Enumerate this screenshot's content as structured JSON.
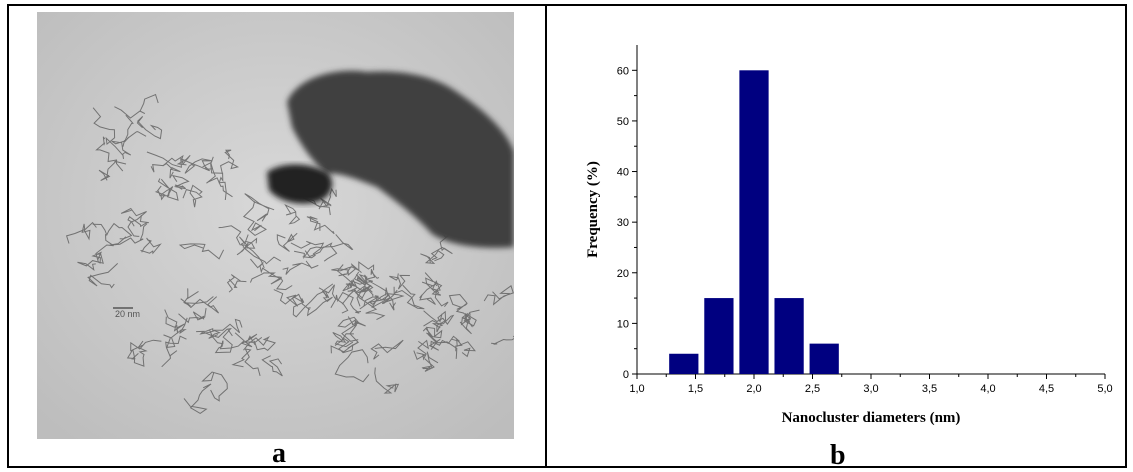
{
  "panels": {
    "left_label": "a",
    "right_label": "b"
  },
  "micrograph": {
    "scale_label": "20 nm"
  },
  "chart_data": {
    "type": "bar",
    "x": [
      1.4,
      1.7,
      2.0,
      2.3,
      2.6
    ],
    "values": [
      4,
      15,
      60,
      15,
      6
    ],
    "bar_color": "#000080",
    "xlabel": "Nanocluster diameters (nm)",
    "ylabel": "Frequency (%)",
    "xlim": [
      1.0,
      5.0
    ],
    "ylim": [
      0,
      65
    ],
    "xticks": [
      "1,0",
      "1,5",
      "2,0",
      "2,5",
      "3,0",
      "3,5",
      "4,0",
      "4,5",
      "5,0"
    ],
    "yticks": [
      "0",
      "10",
      "20",
      "30",
      "40",
      "50",
      "60"
    ],
    "grid": false
  }
}
